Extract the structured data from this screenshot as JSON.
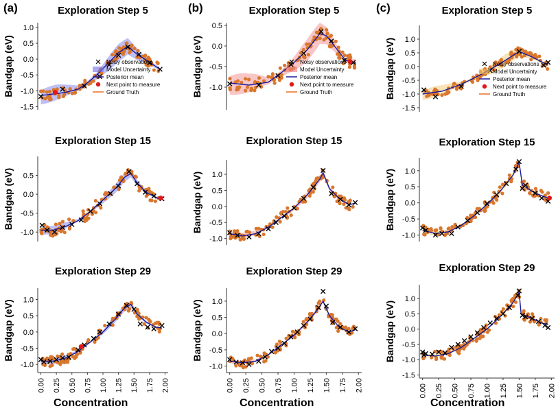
{
  "column_labels": [
    "(a)",
    "(b)",
    "(c)"
  ],
  "x_axis_label": "Concentration",
  "y_axis_label": "Bandgap (eV)",
  "colors": {
    "observation": "#000000",
    "posterior_mean": "#1a1a9c",
    "next_point": "#e01818",
    "ground_truth": "#e87020",
    "scatter": "#d9772d",
    "band_a": "#6f72e8",
    "band_b": "#f08080",
    "band_c": "#f0c060"
  },
  "legend_entries": {
    "observations": "Noisy observations",
    "uncertainty": "Model Uncertainty",
    "mean": "Posterior mean",
    "next": "Next point to measure",
    "truth": "Ground Truth"
  },
  "chart_data": [
    {
      "id": "a5",
      "type": "scatter",
      "title": "Exploration Step 5",
      "ylabel": "Bandgap (eV)",
      "xlim": [
        -0.05,
        2.05
      ],
      "ylim": [
        -1.6,
        1.15
      ],
      "yticks": [
        "1.0",
        "0.5",
        "0.0",
        "-0.5",
        "-1.0",
        "-1.5"
      ],
      "ytick_values": [
        1.0,
        0.5,
        0.0,
        -0.5,
        -1.0,
        -1.5
      ],
      "xticks": [],
      "legend": true,
      "band_width": 0.28,
      "mean_curve": [
        [
          0.0,
          -1.15
        ],
        [
          0.2,
          -1.1
        ],
        [
          0.4,
          -1.05
        ],
        [
          0.6,
          -0.95
        ],
        [
          0.75,
          -0.75
        ],
        [
          0.9,
          -0.5
        ],
        [
          1.1,
          -0.1
        ],
        [
          1.25,
          0.2
        ],
        [
          1.4,
          0.4
        ],
        [
          1.55,
          0.15
        ],
        [
          1.75,
          -0.1
        ],
        [
          1.9,
          -0.3
        ]
      ],
      "observations": [
        [
          0.0,
          -1.18
        ],
        [
          0.35,
          -0.95
        ],
        [
          0.7,
          -0.85
        ],
        [
          0.95,
          -0.55
        ],
        [
          1.1,
          -0.18
        ],
        [
          1.25,
          0.12
        ],
        [
          1.4,
          0.38
        ],
        [
          1.58,
          0.15
        ],
        [
          1.75,
          -0.12
        ],
        [
          1.92,
          -0.32
        ]
      ],
      "next_point": [
        0.23,
        -1.05
      ]
    },
    {
      "id": "b5",
      "type": "scatter",
      "title": "Exploration Step 5",
      "ylabel": "Bandgap (eV)",
      "xlim": [
        -0.05,
        2.05
      ],
      "ylim": [
        -1.55,
        0.55
      ],
      "yticks": [
        "0.5",
        "0.0",
        "-0.5",
        "-1.0"
      ],
      "ytick_values": [
        0.5,
        0.0,
        -0.5,
        -1.0
      ],
      "xticks": [],
      "legend": true,
      "band_width": 0.28,
      "mean_curve": [
        [
          0.0,
          -0.9
        ],
        [
          0.3,
          -0.95
        ],
        [
          0.6,
          -0.88
        ],
        [
          0.8,
          -0.65
        ],
        [
          1.0,
          -0.4
        ],
        [
          1.2,
          -0.1
        ],
        [
          1.4,
          0.3
        ],
        [
          1.5,
          0.25
        ],
        [
          1.65,
          -0.05
        ],
        [
          1.8,
          -0.35
        ],
        [
          1.95,
          -0.4
        ]
      ],
      "observations": [
        [
          0.0,
          -0.92
        ],
        [
          0.45,
          -0.95
        ],
        [
          0.75,
          -0.72
        ],
        [
          0.95,
          -0.45
        ],
        [
          1.15,
          -0.18
        ],
        [
          1.42,
          0.35
        ],
        [
          1.58,
          0.12
        ],
        [
          1.78,
          -0.35
        ],
        [
          1.92,
          -0.4
        ]
      ],
      "next_point": [
        1.87,
        -0.38
      ]
    },
    {
      "id": "c5",
      "type": "scatter",
      "title": "Exploration Step 5",
      "ylabel": "Bandgap (eV)",
      "xlim": [
        -0.05,
        2.05
      ],
      "ylim": [
        -1.65,
        1.5
      ],
      "yticks": [
        "1.0",
        "0.5",
        "0.0",
        "-0.5",
        "-1.0",
        "-1.5"
      ],
      "ytick_values": [
        1.0,
        0.5,
        0.0,
        -0.5,
        -1.0,
        -1.5
      ],
      "xticks": [],
      "legend": true,
      "band_width": 0.22,
      "mean_curve": [
        [
          0.0,
          -1.0
        ],
        [
          0.3,
          -0.9
        ],
        [
          0.6,
          -0.65
        ],
        [
          0.9,
          -0.3
        ],
        [
          1.2,
          0.1
        ],
        [
          1.5,
          0.55
        ],
        [
          1.7,
          0.35
        ],
        [
          1.95,
          0.05
        ]
      ],
      "observations": [
        [
          0.02,
          -0.85
        ],
        [
          0.2,
          -1.1
        ],
        [
          0.6,
          -0.72
        ],
        [
          1.05,
          -0.15
        ],
        [
          1.5,
          0.55
        ],
        [
          1.88,
          0.05
        ],
        [
          1.95,
          0.15
        ]
      ],
      "next_point": null
    },
    {
      "id": "a15",
      "type": "scatter",
      "title": "Exploration Step 15",
      "ylabel": "Bandgap (eV)",
      "xlim": [
        -0.05,
        2.05
      ],
      "ylim": [
        -1.25,
        1.0
      ],
      "yticks": [
        "0.5",
        "0.0",
        "-0.5",
        "-1.0"
      ],
      "ytick_values": [
        0.5,
        0.0,
        -0.5,
        -1.0
      ],
      "xticks": [],
      "legend": false,
      "band_width": 0.12,
      "mean_curve": [
        [
          0.0,
          -0.95
        ],
        [
          0.2,
          -0.95
        ],
        [
          0.4,
          -0.85
        ],
        [
          0.6,
          -0.7
        ],
        [
          0.8,
          -0.45
        ],
        [
          1.0,
          -0.15
        ],
        [
          1.2,
          0.15
        ],
        [
          1.35,
          0.45
        ],
        [
          1.45,
          0.55
        ],
        [
          1.55,
          0.3
        ],
        [
          1.7,
          0.05
        ],
        [
          1.9,
          -0.12
        ]
      ],
      "observations": [
        [
          0.02,
          -0.82
        ],
        [
          0.1,
          -0.95
        ],
        [
          0.22,
          -1.0
        ],
        [
          0.35,
          -0.88
        ],
        [
          0.5,
          -0.8
        ],
        [
          0.65,
          -0.68
        ],
        [
          0.8,
          -0.45
        ],
        [
          0.95,
          -0.25
        ],
        [
          1.12,
          0.02
        ],
        [
          1.25,
          0.22
        ],
        [
          1.42,
          0.6
        ],
        [
          1.55,
          0.28
        ],
        [
          1.68,
          0.05
        ],
        [
          1.82,
          -0.05
        ],
        [
          1.95,
          -0.12
        ]
      ],
      "next_point": [
        1.93,
        -0.1
      ]
    },
    {
      "id": "b15",
      "type": "scatter",
      "title": "Exploration Step 15",
      "ylabel": "Bandgap (eV)",
      "xlim": [
        -0.05,
        2.05
      ],
      "ylim": [
        -1.2,
        1.45
      ],
      "yticks": [
        "1.0",
        "0.5",
        "0.0",
        "-0.5",
        "-1.0"
      ],
      "ytick_values": [
        1.0,
        0.5,
        0.0,
        -0.5,
        -1.0
      ],
      "xticks": [],
      "legend": false,
      "band_width": 0.1,
      "mean_curve": [
        [
          0.0,
          -0.85
        ],
        [
          0.2,
          -0.92
        ],
        [
          0.4,
          -0.85
        ],
        [
          0.6,
          -0.65
        ],
        [
          0.8,
          -0.35
        ],
        [
          1.0,
          -0.05
        ],
        [
          1.2,
          0.35
        ],
        [
          1.4,
          0.85
        ],
        [
          1.45,
          1.05
        ],
        [
          1.55,
          0.55
        ],
        [
          1.7,
          0.25
        ],
        [
          1.85,
          0.05
        ],
        [
          1.95,
          0.1
        ]
      ],
      "observations": [
        [
          0.0,
          -0.82
        ],
        [
          0.12,
          -0.9
        ],
        [
          0.3,
          -0.95
        ],
        [
          0.45,
          -0.85
        ],
        [
          0.6,
          -0.7
        ],
        [
          0.72,
          -0.5
        ],
        [
          0.85,
          -0.3
        ],
        [
          1.0,
          -0.05
        ],
        [
          1.15,
          0.25
        ],
        [
          1.3,
          0.6
        ],
        [
          1.45,
          1.12
        ],
        [
          1.58,
          0.4
        ],
        [
          1.72,
          0.22
        ],
        [
          1.85,
          0.05
        ],
        [
          1.95,
          0.12
        ]
      ],
      "next_point": null
    },
    {
      "id": "c15",
      "type": "scatter",
      "title": "Exploration Step 15",
      "ylabel": "Bandgap (eV)",
      "xlim": [
        -0.05,
        2.05
      ],
      "ylim": [
        -1.2,
        1.4
      ],
      "yticks": [
        "1.0",
        "0.5",
        "0.0",
        "-0.5",
        "-1.0"
      ],
      "ytick_values": [
        1.0,
        0.5,
        0.0,
        -0.5,
        -1.0
      ],
      "xticks": [],
      "legend": false,
      "band_width": 0.08,
      "mean_curve": [
        [
          0.0,
          -0.85
        ],
        [
          0.2,
          -0.95
        ],
        [
          0.4,
          -0.9
        ],
        [
          0.6,
          -0.7
        ],
        [
          0.8,
          -0.4
        ],
        [
          1.0,
          -0.05
        ],
        [
          1.2,
          0.35
        ],
        [
          1.4,
          0.85
        ],
        [
          1.5,
          1.25
        ],
        [
          1.55,
          0.55
        ],
        [
          1.75,
          0.3
        ],
        [
          1.95,
          0.15
        ]
      ],
      "observations": [
        [
          0.0,
          -0.78
        ],
        [
          0.05,
          -0.85
        ],
        [
          0.2,
          -1.0
        ],
        [
          0.3,
          -0.95
        ],
        [
          0.45,
          -0.95
        ],
        [
          0.55,
          -0.75
        ],
        [
          0.7,
          -0.55
        ],
        [
          0.85,
          -0.3
        ],
        [
          1.0,
          -0.02
        ],
        [
          1.15,
          0.25
        ],
        [
          1.3,
          0.6
        ],
        [
          1.45,
          1.05
        ],
        [
          1.5,
          1.28
        ],
        [
          1.55,
          0.45
        ],
        [
          1.6,
          0.55
        ],
        [
          1.75,
          0.3
        ],
        [
          1.85,
          0.15
        ],
        [
          1.95,
          0.05
        ]
      ],
      "next_point": [
        1.97,
        0.15
      ]
    },
    {
      "id": "a29",
      "type": "scatter",
      "title": "Exploration Step 29",
      "ylabel": "Bandgap (eV)",
      "xlim": [
        -0.05,
        2.05
      ],
      "ylim": [
        -1.25,
        1.35
      ],
      "yticks": [
        "1.0",
        "0.5",
        "0.0",
        "-0.5",
        "-1.0"
      ],
      "ytick_values": [
        1.0,
        0.5,
        0.0,
        -0.5,
        -1.0
      ],
      "xticks": [
        "0.00",
        "0.25",
        "0.50",
        "0.75",
        "1.00",
        "1.25",
        "1.50",
        "1.75",
        "2.00"
      ],
      "xtick_values": [
        0,
        0.25,
        0.5,
        0.75,
        1.0,
        1.25,
        1.5,
        1.75,
        2.0
      ],
      "legend": false,
      "band_width": 0.1,
      "mean_curve": [
        [
          0.0,
          -0.9
        ],
        [
          0.2,
          -0.9
        ],
        [
          0.4,
          -0.8
        ],
        [
          0.6,
          -0.6
        ],
        [
          0.8,
          -0.3
        ],
        [
          1.0,
          0.0
        ],
        [
          1.2,
          0.4
        ],
        [
          1.35,
          0.75
        ],
        [
          1.45,
          0.85
        ],
        [
          1.55,
          0.55
        ],
        [
          1.7,
          0.3
        ],
        [
          1.85,
          0.15
        ],
        [
          1.95,
          0.12
        ]
      ],
      "observations": [
        [
          0.0,
          -0.85
        ],
        [
          0.05,
          -0.92
        ],
        [
          0.15,
          -0.9
        ],
        [
          0.25,
          -0.85
        ],
        [
          0.35,
          -0.8
        ],
        [
          0.45,
          -0.78
        ],
        [
          0.6,
          -0.55
        ],
        [
          0.7,
          -0.4
        ],
        [
          0.85,
          -0.2
        ],
        [
          0.95,
          0.0
        ],
        [
          1.1,
          0.25
        ],
        [
          1.25,
          0.55
        ],
        [
          1.38,
          0.82
        ],
        [
          1.5,
          0.7
        ],
        [
          1.6,
          0.25
        ],
        [
          1.72,
          0.15
        ],
        [
          1.82,
          0.1
        ],
        [
          1.95,
          0.2
        ]
      ],
      "next_point": [
        0.65,
        -0.45
      ]
    },
    {
      "id": "b29",
      "type": "scatter",
      "title": "Exploration Step 29",
      "ylabel": "Bandgap (eV)",
      "xlim": [
        -0.05,
        2.05
      ],
      "ylim": [
        -1.2,
        1.4
      ],
      "yticks": [
        "1.0",
        "0.5",
        "0.0",
        "-0.5",
        "-1.0"
      ],
      "ytick_values": [
        1.0,
        0.5,
        0.0,
        -0.5,
        -1.0
      ],
      "xticks": [
        "0.00",
        "0.25",
        "0.50",
        "0.75",
        "1.00",
        "1.25",
        "1.50",
        "1.75",
        "2.00"
      ],
      "xtick_values": [
        0,
        0.25,
        0.5,
        0.75,
        1.0,
        1.25,
        1.5,
        1.75,
        2.0
      ],
      "legend": false,
      "band_width": 0.06,
      "mean_curve": [
        [
          0.0,
          -0.85
        ],
        [
          0.2,
          -0.9
        ],
        [
          0.4,
          -0.85
        ],
        [
          0.6,
          -0.65
        ],
        [
          0.8,
          -0.35
        ],
        [
          1.0,
          -0.05
        ],
        [
          1.2,
          0.35
        ],
        [
          1.35,
          0.7
        ],
        [
          1.45,
          1.0
        ],
        [
          1.55,
          0.55
        ],
        [
          1.7,
          0.2
        ],
        [
          1.85,
          0.05
        ],
        [
          1.95,
          0.12
        ]
      ],
      "observations": [
        [
          0.0,
          -0.8
        ],
        [
          0.1,
          -0.88
        ],
        [
          0.2,
          -0.9
        ],
        [
          0.3,
          -0.95
        ],
        [
          0.45,
          -0.85
        ],
        [
          0.55,
          -0.72
        ],
        [
          0.65,
          -0.55
        ],
        [
          0.75,
          -0.45
        ],
        [
          0.85,
          -0.3
        ],
        [
          0.95,
          -0.1
        ],
        [
          1.05,
          0.05
        ],
        [
          1.15,
          0.25
        ],
        [
          1.25,
          0.45
        ],
        [
          1.38,
          0.8
        ],
        [
          1.45,
          1.3
        ],
        [
          1.5,
          0.85
        ],
        [
          1.6,
          0.35
        ],
        [
          1.72,
          0.2
        ],
        [
          1.85,
          0.05
        ],
        [
          1.95,
          0.15
        ]
      ],
      "next_point": null
    },
    {
      "id": "c29",
      "type": "scatter",
      "title": "Exploration Step 29",
      "ylabel": "Bandgap (eV)",
      "xlim": [
        -0.05,
        2.05
      ],
      "ylim": [
        -1.6,
        1.45
      ],
      "yticks": [
        "1.0",
        "0.5",
        "0.0",
        "-0.5",
        "-1.0",
        "-1.5"
      ],
      "ytick_values": [
        1.0,
        0.5,
        0.0,
        -0.5,
        -1.0,
        -1.5
      ],
      "xticks": [
        "0.00",
        "0.25",
        "0.50",
        "0.75",
        "1.00",
        "1.25",
        "1.50",
        "1.75",
        "2.00"
      ],
      "xtick_values": [
        0,
        0.25,
        0.5,
        0.75,
        1.0,
        1.25,
        1.5,
        1.75,
        2.0
      ],
      "legend": false,
      "band_width": 0.06,
      "mean_curve": [
        [
          0.0,
          -0.85
        ],
        [
          0.2,
          -0.88
        ],
        [
          0.4,
          -0.8
        ],
        [
          0.6,
          -0.6
        ],
        [
          0.8,
          -0.3
        ],
        [
          1.0,
          0.0
        ],
        [
          1.2,
          0.4
        ],
        [
          1.4,
          0.85
        ],
        [
          1.5,
          1.2
        ],
        [
          1.53,
          0.5
        ],
        [
          1.7,
          0.35
        ],
        [
          1.85,
          0.2
        ],
        [
          1.95,
          0.15
        ]
      ],
      "observations": [
        [
          0.0,
          -0.75
        ],
        [
          0.02,
          -0.85
        ],
        [
          0.05,
          -0.8
        ],
        [
          0.15,
          -0.82
        ],
        [
          0.25,
          -0.75
        ],
        [
          0.35,
          -0.78
        ],
        [
          0.45,
          -0.6
        ],
        [
          0.55,
          -0.5
        ],
        [
          0.65,
          -0.38
        ],
        [
          0.75,
          -0.25
        ],
        [
          0.85,
          -0.12
        ],
        [
          0.95,
          0.05
        ],
        [
          1.05,
          0.2
        ],
        [
          1.15,
          0.35
        ],
        [
          1.25,
          0.5
        ],
        [
          1.35,
          0.7
        ],
        [
          1.48,
          1.1
        ],
        [
          1.5,
          1.25
        ],
        [
          1.55,
          0.45
        ],
        [
          1.6,
          0.4
        ],
        [
          1.7,
          0.35
        ],
        [
          1.8,
          0.25
        ],
        [
          1.9,
          0.12
        ],
        [
          1.95,
          0.05
        ]
      ],
      "next_point": null
    }
  ]
}
